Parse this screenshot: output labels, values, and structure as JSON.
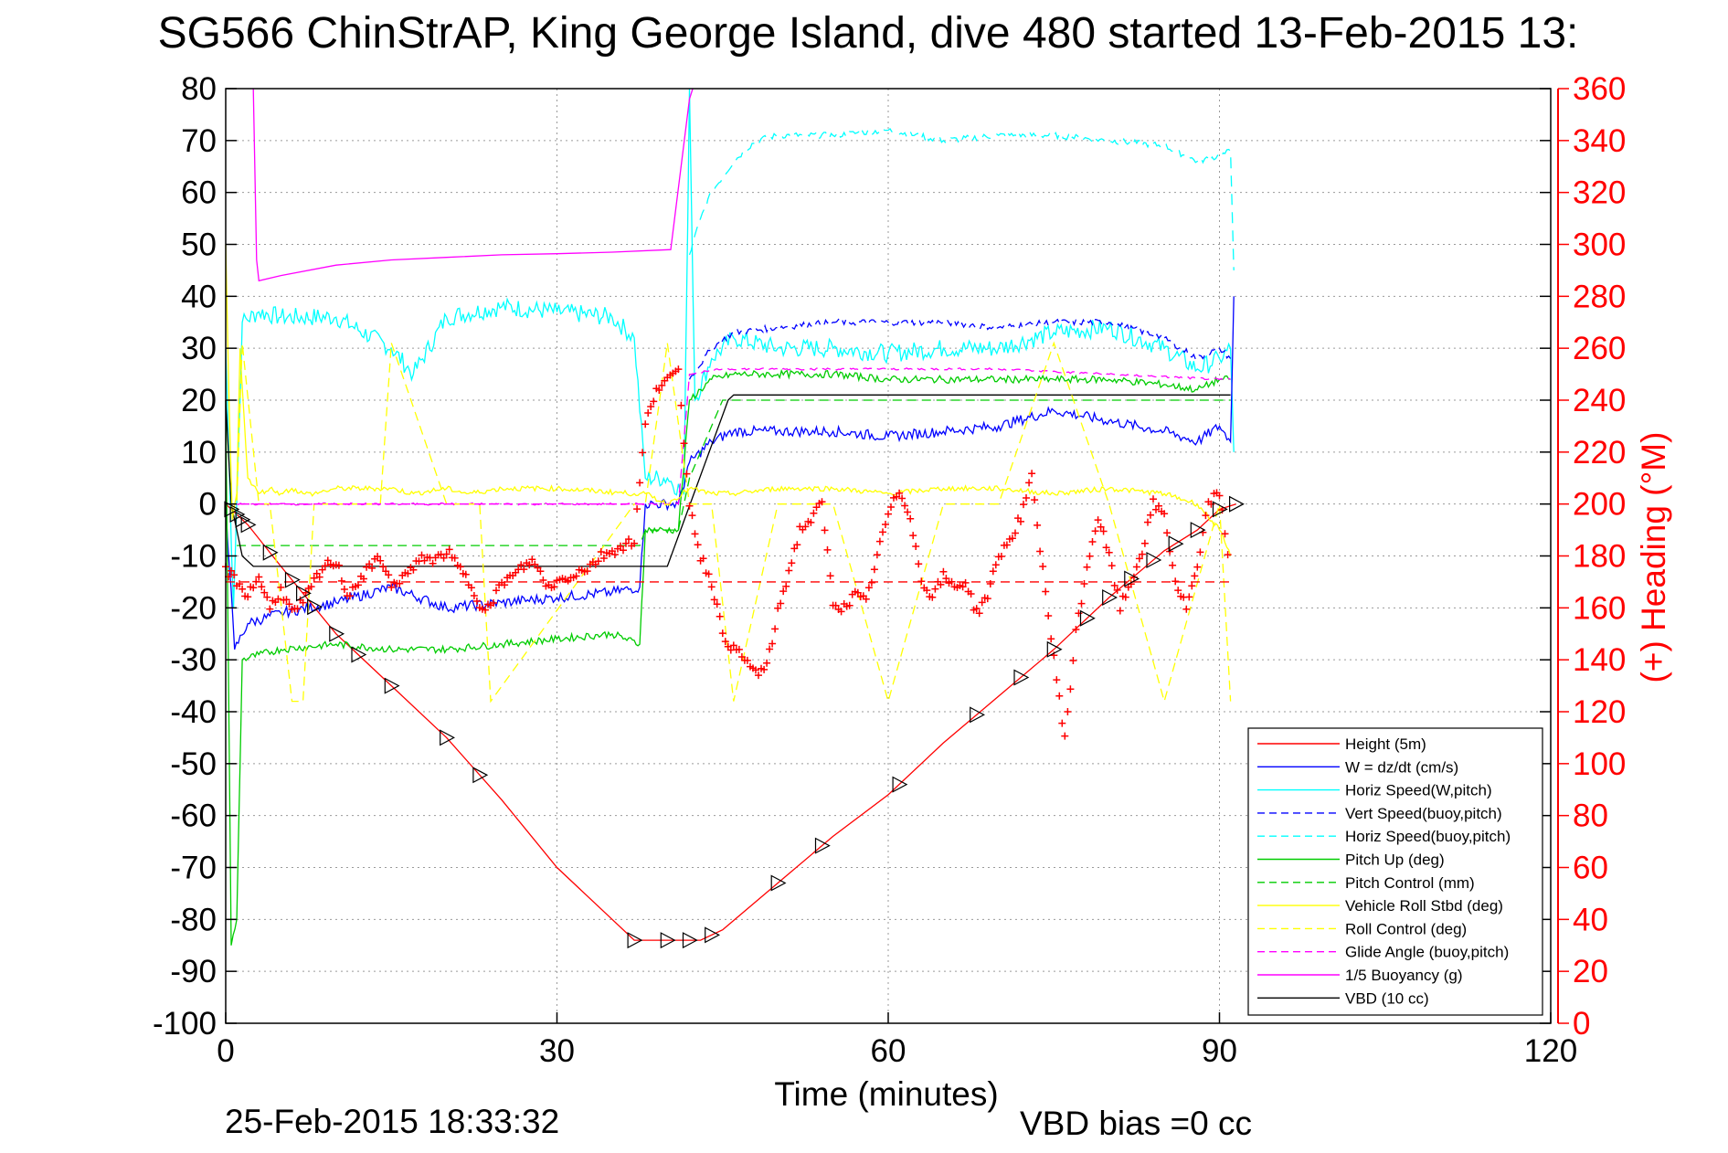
{
  "page": {
    "title": "SG566 ChinStrAP, King George Island, dive 480 started 13-Feb-2015 13:",
    "timestamp": "25-Feb-2015 18:33:32",
    "vbd_bias": "VBD bias =0 cc"
  },
  "chart_data": {
    "type": "line",
    "title": "SG566 ChinStrAP, King George Island, dive 480 started 13-Feb-2015 13:",
    "xlabel": "Time (minutes)",
    "ylabel": "",
    "y2label": "(+) Heading (°M)",
    "xlim": [
      0,
      120
    ],
    "ylim": [
      -100,
      80
    ],
    "y2lim": [
      0,
      360
    ],
    "xticks": [
      0,
      30,
      60,
      90,
      120
    ],
    "yticks": [
      80,
      70,
      60,
      50,
      40,
      30,
      20,
      10,
      0,
      -10,
      -20,
      -30,
      -40,
      -50,
      -60,
      -70,
      -80,
      -90,
      -100
    ],
    "y2ticks": [
      360,
      340,
      320,
      300,
      280,
      260,
      240,
      220,
      200,
      180,
      160,
      140,
      120,
      100,
      80,
      60,
      40,
      20,
      0
    ],
    "grid": true,
    "legend_position": "bottom-right",
    "legend": [
      {
        "label": "Height (5m)",
        "color": "#ff0000",
        "style": "solid"
      },
      {
        "label": "W = dz/dt (cm/s)",
        "color": "#0000ff",
        "style": "solid"
      },
      {
        "label": "Horiz Speed(W,pitch)",
        "color": "#00ffff",
        "style": "solid"
      },
      {
        "label": "Vert Speed(buoy,pitch)",
        "color": "#0000ff",
        "style": "dashed"
      },
      {
        "label": "Horiz Speed(buoy,pitch)",
        "color": "#00ffff",
        "style": "dashed"
      },
      {
        "label": "Pitch Up (deg)",
        "color": "#00cc00",
        "style": "solid"
      },
      {
        "label": "Pitch Control (mm)",
        "color": "#00cc00",
        "style": "dashed"
      },
      {
        "label": "Vehicle Roll Stbd (deg)",
        "color": "#ffff00",
        "style": "solid"
      },
      {
        "label": "Roll Control (deg)",
        "color": "#ffff00",
        "style": "dashed"
      },
      {
        "label": "Glide Angle (buoy,pitch)",
        "color": "#ff00ff",
        "style": "dashed"
      },
      {
        "label": "1/5 Buoyancy (g)",
        "color": "#ff00ff",
        "style": "solid"
      },
      {
        "label": "VBD (10 cc)",
        "color": "#000000",
        "style": "solid"
      }
    ],
    "series": [
      {
        "name": "Height (5m)",
        "color": "#ff0000",
        "dash": "",
        "noise": 0,
        "x": [
          0,
          2,
          5,
          10,
          15,
          20,
          25,
          30,
          35,
          37,
          40,
          43,
          45,
          50,
          55,
          60,
          65,
          70,
          75,
          80,
          85,
          88,
          90,
          91.5
        ],
        "y": [
          0,
          -4,
          -12,
          -25,
          -35,
          -45,
          -57,
          -70,
          -80,
          -84,
          -84,
          -84,
          -82,
          -73,
          -64,
          -56,
          -46,
          -37,
          -28,
          -18,
          -9,
          -5,
          -1,
          0
        ]
      },
      {
        "name": "Horiz Speed(W,pitch)",
        "color": "#00ffff",
        "dash": "",
        "noise": 1.8,
        "x": [
          0,
          0.7,
          1.5,
          3,
          5,
          10,
          15,
          17,
          20,
          25,
          30,
          35,
          37,
          38,
          40,
          41.5,
          42,
          42.5,
          44,
          46,
          50,
          55,
          60,
          65,
          70,
          75,
          80,
          85,
          88,
          90,
          91,
          91.3
        ],
        "y": [
          30,
          -20,
          35,
          37,
          36,
          36,
          30,
          25,
          36,
          38,
          37,
          36,
          32,
          5,
          5,
          2,
          80,
          20,
          28,
          32,
          30,
          30,
          29,
          30,
          30,
          33,
          34,
          30,
          26,
          28,
          30,
          10
        ]
      },
      {
        "name": "Horiz Speed(buoy,pitch)",
        "color": "#00ffff",
        "dash": "12,8",
        "noise": 0.6,
        "x": [
          42,
          43,
          44,
          46,
          48,
          50,
          55,
          60,
          65,
          70,
          75,
          80,
          85,
          88,
          90,
          91,
          91.3
        ],
        "y": [
          48,
          55,
          60,
          66,
          70,
          71,
          71,
          72,
          70,
          71,
          71,
          70,
          69,
          66,
          67,
          68,
          45
        ]
      },
      {
        "name": "W = dz/dt (cm/s)",
        "color": "#0000ff",
        "dash": "",
        "noise": 1.0,
        "x": [
          0,
          0.8,
          2,
          5,
          10,
          15,
          20,
          25,
          30,
          35,
          37.5,
          38,
          41,
          42,
          44,
          46,
          50,
          55,
          60,
          65,
          70,
          75,
          80,
          85,
          88,
          90,
          91,
          91.3
        ],
        "y": [
          0,
          -28,
          -23,
          -21,
          -19,
          -16,
          -20,
          -19,
          -18,
          -17,
          -16,
          0,
          0,
          8,
          12,
          14,
          14,
          14,
          13,
          14,
          15,
          18,
          16,
          14,
          12,
          15,
          12,
          40
        ]
      },
      {
        "name": "Vert Speed(buoy,pitch)",
        "color": "#0000ff",
        "dash": "10,6",
        "noise": 0.6,
        "x": [
          42,
          44,
          46,
          50,
          55,
          60,
          65,
          70,
          75,
          80,
          85,
          88,
          90,
          91
        ],
        "y": [
          24,
          30,
          33,
          34,
          35,
          35,
          35,
          34,
          35,
          35,
          32,
          28,
          30,
          28
        ]
      },
      {
        "name": "Pitch Up (deg)",
        "color": "#00cc00",
        "dash": "",
        "noise": 0.7,
        "x": [
          0,
          0.5,
          1,
          1.5,
          3,
          5,
          10,
          15,
          20,
          25,
          30,
          35,
          37.5,
          38,
          41,
          42,
          44,
          46,
          50,
          55,
          60,
          65,
          70,
          75,
          80,
          85,
          88,
          90,
          91
        ],
        "y": [
          20,
          -85,
          -80,
          -30,
          -29,
          -28,
          -27,
          -28,
          -28,
          -27,
          -26,
          -25,
          -27,
          -5,
          -5,
          20,
          24,
          25,
          25,
          25,
          24,
          24,
          24,
          24,
          24,
          23,
          22,
          24,
          24
        ]
      },
      {
        "name": "Pitch Control (mm)",
        "color": "#00cc00",
        "dash": "10,6",
        "noise": 0,
        "x": [
          1,
          37.5,
          38,
          41,
          42,
          45,
          91
        ],
        "y": [
          -8,
          -8,
          -5,
          -5,
          5,
          20,
          20
        ]
      },
      {
        "name": "Glide Angle (buoy,pitch)",
        "color": "#ff00ff",
        "dash": "10,6",
        "noise": 0.2,
        "x": [
          1,
          37.5,
          38,
          41,
          42,
          45,
          50,
          60,
          70,
          80,
          90,
          91
        ],
        "y": [
          0,
          0,
          0,
          0,
          25,
          26,
          26,
          26,
          26,
          25,
          24,
          24
        ]
      },
      {
        "name": "1/5 Buoyancy (g)",
        "color": "#ff00ff",
        "dash": "",
        "noise": 0,
        "x": [
          2.5,
          2.8,
          3,
          5,
          10,
          15,
          20,
          25,
          30,
          35,
          40.3,
          42,
          42.3
        ],
        "y": [
          80,
          47,
          43,
          44,
          46,
          47,
          47.5,
          48,
          48.2,
          48.5,
          49,
          78,
          80
        ]
      },
      {
        "name": "VBD (10 cc)",
        "color": "#000000",
        "dash": "",
        "noise": 0,
        "x": [
          0,
          0.5,
          1,
          1.5,
          2.5,
          5,
          37.5,
          40,
          45.5,
          46,
          91
        ],
        "y": [
          20,
          0,
          -5,
          -10,
          -12,
          -12,
          -12,
          -12,
          20,
          21,
          21
        ]
      },
      {
        "name": "Vehicle Roll Stbd (deg)",
        "color": "#ffff00",
        "dash": "",
        "noise": 0.5,
        "x": [
          0,
          0.3,
          0.6,
          1,
          1.3,
          2,
          3,
          4,
          5,
          6,
          7,
          8,
          10,
          15,
          17,
          20,
          22,
          25,
          30,
          37,
          37.5,
          38,
          40,
          42,
          44,
          46,
          50,
          55,
          60,
          65,
          70,
          75,
          80,
          85,
          88,
          90,
          91
        ],
        "y": [
          50,
          20,
          -3,
          2,
          30,
          5,
          2,
          3,
          2,
          3,
          2,
          2,
          3,
          3,
          2,
          3,
          2,
          3,
          3,
          2,
          2,
          2,
          0,
          3,
          2,
          2,
          3,
          3,
          2,
          3,
          3,
          2,
          3,
          2,
          0,
          -5,
          -10
        ]
      },
      {
        "name": "Roll Control (deg)",
        "color": "#ffff00",
        "dash": "10,6",
        "noise": 0,
        "x": [
          0,
          1,
          1.5,
          3,
          4,
          6,
          7,
          8,
          10,
          14,
          15,
          20,
          23,
          24,
          37,
          38,
          40,
          42,
          44,
          46,
          50,
          55,
          60,
          65,
          70,
          75,
          80,
          85,
          90,
          91
        ],
        "y": [
          0,
          0,
          31,
          0,
          0,
          -38,
          -38,
          0,
          0,
          0,
          31,
          0,
          0,
          -38,
          0,
          0,
          31,
          0,
          0,
          -38,
          0,
          0,
          -38,
          0,
          0,
          31,
          0,
          -38,
          0,
          -38
        ]
      }
    ],
    "heading_markers": {
      "name": "(+) Heading",
      "color": "#ff0000",
      "axis": "right",
      "x": [
        0,
        1,
        2,
        3,
        4,
        5,
        6,
        7,
        8,
        9,
        10,
        11,
        12,
        13,
        14,
        15,
        16,
        17,
        18,
        19,
        20,
        21,
        22,
        23,
        24,
        25,
        26,
        27,
        28,
        29,
        30,
        31,
        32,
        33,
        34,
        35,
        36,
        37,
        38,
        39,
        40,
        41,
        42,
        43,
        44,
        45,
        46,
        47,
        48,
        49,
        50,
        51,
        52,
        53,
        54,
        55,
        56,
        57,
        58,
        59,
        60,
        61,
        62,
        63,
        64,
        65,
        66,
        67,
        68,
        69,
        70,
        71,
        72,
        73,
        74,
        75,
        76,
        77,
        78,
        79,
        80,
        81,
        82,
        83,
        84,
        85,
        86,
        87,
        88,
        89,
        90,
        91
      ],
      "y": [
        175,
        170,
        165,
        172,
        160,
        167,
        158,
        162,
        170,
        176,
        178,
        165,
        170,
        175,
        180,
        168,
        172,
        175,
        180,
        178,
        182,
        176,
        170,
        162,
        160,
        170,
        172,
        176,
        178,
        168,
        170,
        172,
        174,
        176,
        180,
        182,
        184,
        186,
        230,
        245,
        248,
        250,
        200,
        180,
        170,
        150,
        144,
        140,
        135,
        137,
        158,
        174,
        190,
        194,
        200,
        162,
        160,
        165,
        162,
        180,
        196,
        205,
        196,
        170,
        165,
        172,
        168,
        170,
        158,
        165,
        180,
        186,
        195,
        210,
        175,
        140,
        110,
        150,
        176,
        195,
        180,
        160,
        170,
        182,
        200,
        196,
        170,
        160,
        175,
        200,
        205,
        170
      ]
    },
    "reference_lines": [
      {
        "name": "dashed-red-reference",
        "color": "#ff0000",
        "dash": "10,6",
        "x": [
          0,
          91
        ],
        "y2": [
          170,
          170
        ]
      },
      {
        "name": "dashed-magenta-reference",
        "color": "#ff00ff",
        "dash": "10,6",
        "x": [
          0,
          38
        ],
        "y": [
          0,
          0
        ]
      }
    ],
    "triangle_markers": [
      0.5,
      1,
      1.5,
      2,
      4,
      6,
      7,
      8,
      10,
      12,
      15,
      20,
      23,
      37,
      40,
      42,
      44,
      50,
      54,
      61,
      68,
      72,
      75,
      78,
      80,
      82,
      84,
      86,
      88,
      90,
      91.5
    ]
  }
}
